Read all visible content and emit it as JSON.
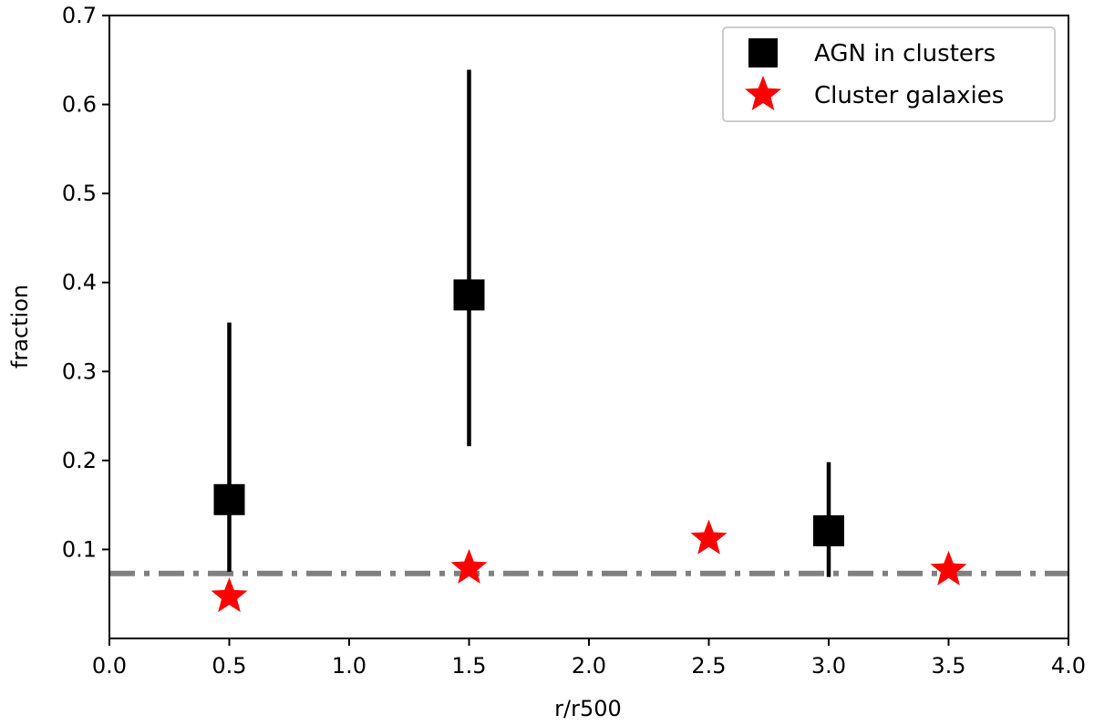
{
  "chart_data": {
    "type": "scatter",
    "xlabel": "r/r500",
    "ylabel": "fraction",
    "xlim": [
      0.0,
      4.0
    ],
    "ylim": [
      0.0,
      0.7
    ],
    "xticks": [
      "0.0",
      "0.5",
      "1.0",
      "1.5",
      "2.0",
      "2.5",
      "3.0",
      "3.5",
      "4.0"
    ],
    "yticks": [
      "0.1",
      "0.2",
      "0.3",
      "0.4",
      "0.5",
      "0.6",
      "0.7"
    ],
    "grid": false,
    "legend_position": "top-right",
    "series": [
      {
        "name": "AGN in clusters",
        "marker": "square",
        "color": "#000000",
        "points": [
          {
            "x": 0.5,
            "y": 0.156,
            "ylow": 0.075,
            "yhigh": 0.355
          },
          {
            "x": 1.5,
            "y": 0.386,
            "ylow": 0.216,
            "yhigh": 0.639
          },
          {
            "x": 3.0,
            "y": 0.121,
            "ylow": 0.069,
            "yhigh": 0.198
          }
        ]
      },
      {
        "name": "Cluster galaxies",
        "marker": "star",
        "color": "#ff0000",
        "points": [
          {
            "x": 0.5,
            "y": 0.047
          },
          {
            "x": 1.5,
            "y": 0.079
          },
          {
            "x": 2.5,
            "y": 0.112
          },
          {
            "x": 3.5,
            "y": 0.077
          }
        ]
      }
    ],
    "reference_line": {
      "y": 0.073,
      "style": "dash-dot",
      "color": "#808080"
    }
  }
}
